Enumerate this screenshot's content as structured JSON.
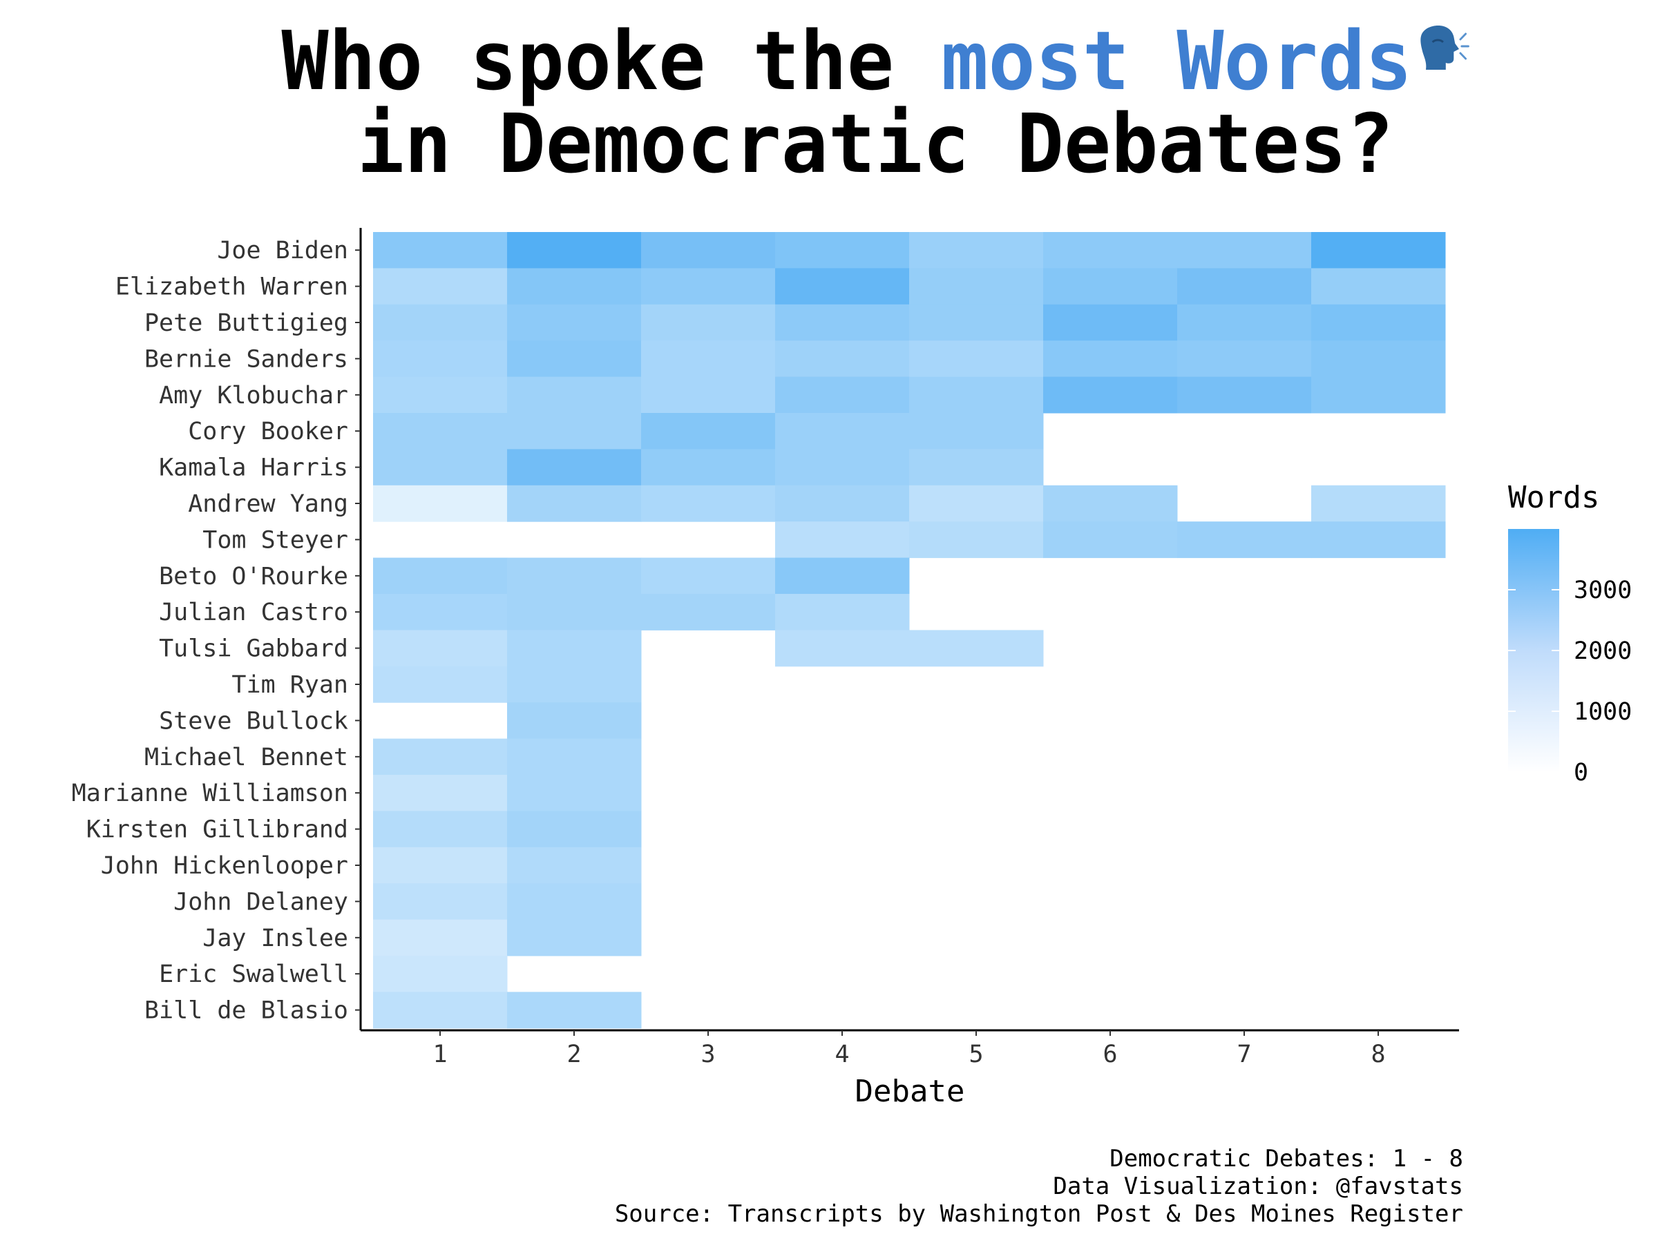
{
  "title": {
    "line1_prefix": "Who spoke the ",
    "line1_highlight": "most Words",
    "line2": "in Democratic Debates?",
    "icon": "speaking-head-icon",
    "highlight_color": "#3f7fd1"
  },
  "caption": [
    "Democratic Debates: 1 - 8",
    "Data Visualization: @favstats",
    "Source: Transcripts by Washington Post & Des Moines Register"
  ],
  "chart_data": {
    "type": "heatmap",
    "xlabel": "Debate",
    "ylabel": "",
    "x": [
      1,
      2,
      3,
      4,
      5,
      6,
      7,
      8
    ],
    "y": [
      "Joe Biden",
      "Elizabeth Warren",
      "Pete Buttigieg",
      "Bernie Sanders",
      "Amy Klobuchar",
      "Cory Booker",
      "Kamala Harris",
      "Andrew Yang",
      "Tom Steyer",
      "Beto O'Rourke",
      "Julian Castro",
      "Tulsi Gabbard",
      "Tim Ryan",
      "Steve Bullock",
      "Michael Bennet",
      "Marianne Williamson",
      "Kirsten Gillibrand",
      "John Hickenlooper",
      "John Delaney",
      "Jay Inslee",
      "Eric Swalwell",
      "Bill de Blasio"
    ],
    "values": [
      [
        2700,
        3900,
        3100,
        2900,
        2300,
        2600,
        2600,
        3900
      ],
      [
        1800,
        2800,
        2600,
        3500,
        2400,
        2800,
        3100,
        2400
      ],
      [
        2100,
        2600,
        2100,
        2600,
        2400,
        3300,
        2800,
        3000
      ],
      [
        2000,
        2700,
        2000,
        2200,
        2000,
        2700,
        2600,
        2800
      ],
      [
        1900,
        2200,
        2000,
        2600,
        2300,
        3300,
        3100,
        2800
      ],
      [
        2200,
        2200,
        2800,
        2300,
        2300,
        null,
        null,
        null
      ],
      [
        2200,
        3200,
        2500,
        2300,
        2100,
        null,
        null,
        null
      ],
      [
        700,
        2100,
        1900,
        2100,
        1500,
        2100,
        null,
        1700
      ],
      [
        null,
        null,
        null,
        1600,
        1700,
        2200,
        2300,
        2300
      ],
      [
        2200,
        2100,
        1900,
        2700,
        null,
        null,
        null,
        null
      ],
      [
        2000,
        2100,
        2100,
        1800,
        null,
        null,
        null,
        null
      ],
      [
        1500,
        1900,
        null,
        1600,
        1600,
        null,
        null,
        null
      ],
      [
        1600,
        1900,
        null,
        null,
        null,
        null,
        null,
        null
      ],
      [
        null,
        2100,
        null,
        null,
        null,
        null,
        null,
        null
      ],
      [
        1700,
        1900,
        null,
        null,
        null,
        null,
        null,
        null
      ],
      [
        1300,
        1900,
        null,
        null,
        null,
        null,
        null,
        null
      ],
      [
        1700,
        2100,
        null,
        null,
        null,
        null,
        null,
        null
      ],
      [
        1300,
        1800,
        null,
        null,
        null,
        null,
        null,
        null
      ],
      [
        1500,
        1900,
        null,
        null,
        null,
        null,
        null,
        null
      ],
      [
        1100,
        1900,
        null,
        null,
        null,
        null,
        null,
        null
      ],
      [
        1200,
        null,
        null,
        null,
        null,
        null,
        null,
        null
      ],
      [
        1500,
        1900,
        null,
        null,
        null,
        null,
        null,
        null
      ]
    ],
    "legend": {
      "title": "Words",
      "ticks": [
        0,
        1000,
        2000,
        3000
      ],
      "range": [
        0,
        4000
      ],
      "position": "right"
    },
    "colors": {
      "low": "#ffffff",
      "high": "#4fadf4",
      "axis": "#000000",
      "tick_label": "#333333"
    }
  }
}
